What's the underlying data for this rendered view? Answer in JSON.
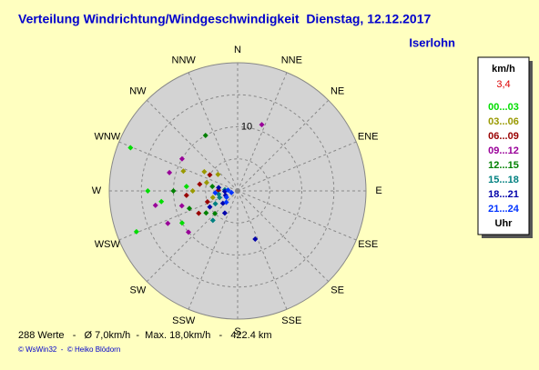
{
  "title": "Verteilung Windrichtung/Windgeschwindigkeit  Dienstag, 12.12.2017",
  "station": "Iserlohn",
  "chart_data": {
    "type": "polar-scatter",
    "rlim": [
      0,
      20
    ],
    "rticks": [
      10
    ],
    "directions": [
      "N",
      "NNE",
      "NE",
      "ENE",
      "E",
      "ESE",
      "SE",
      "SSE",
      "S",
      "SSW",
      "SW",
      "WSW",
      "W",
      "WNW",
      "NW",
      "NNW"
    ],
    "series": [
      {
        "name": "00...03",
        "color": "#00dd00",
        "x": [
          292,
          270,
          248,
          262,
          275,
          240
        ],
        "values": [
          18,
          14,
          17,
          12,
          8,
          10
        ]
      },
      {
        "name": "03...06",
        "color": "#999900",
        "x": [
          300,
          285,
          310,
          270,
          255,
          290
        ],
        "values": [
          6,
          5,
          4,
          7,
          4,
          9
        ]
      },
      {
        "name": "06...09",
        "color": "#990000",
        "x": [
          280,
          265,
          250,
          300,
          240,
          272
        ],
        "values": [
          6,
          8,
          5,
          5,
          7,
          3
        ]
      },
      {
        "name": "09...12",
        "color": "#990099",
        "x": [
          20,
          285,
          260,
          245,
          230,
          300,
          255
        ],
        "values": [
          11,
          11,
          13,
          12,
          10,
          10,
          9
        ]
      },
      {
        "name": "12...15",
        "color": "#008000",
        "x": [
          330,
          270,
          250,
          235,
          225,
          280
        ],
        "values": [
          10,
          10,
          8,
          6,
          5,
          4
        ]
      },
      {
        "name": "15...18",
        "color": "#008080",
        "x": [
          260,
          240,
          220,
          275,
          250
        ],
        "values": [
          3,
          4,
          6,
          2,
          3
        ]
      },
      {
        "name": "18...21",
        "color": "#0000aa",
        "x": [
          268,
          250,
          230,
          210,
          160,
          280,
          240
        ],
        "values": [
          2,
          2,
          3,
          4,
          8,
          3,
          5
        ]
      },
      {
        "name": "21...24",
        "color": "#0033ff",
        "x": [
          255,
          275,
          240,
          225,
          265
        ],
        "values": [
          1,
          1.5,
          2,
          2.5,
          3.5
        ]
      }
    ]
  },
  "legend": {
    "unit": "km/h",
    "current": "3,4",
    "footer": "Uhr"
  },
  "footer": {
    "stats": "288 Werte   -   Ø 7,0km/h  -  Max. 18,0km/h   -   422.4 km",
    "credits": "© WsWin32  -  © Heiko Blödorn"
  }
}
